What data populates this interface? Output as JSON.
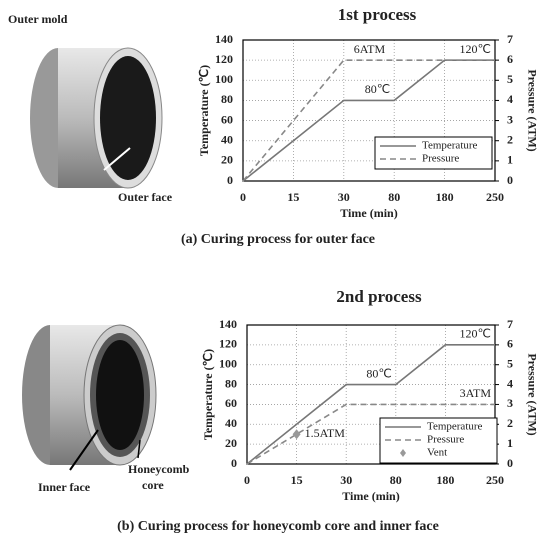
{
  "chart_data": [
    {
      "type": "line",
      "title": "1st process",
      "caption": "(a)  Curing  process  for  outer  face",
      "x_label": "Time (min)",
      "y_label": "Temperature (℃)",
      "y2_label": "Pressure (ATM)",
      "categories": [
        "0",
        "15",
        "30",
        "80",
        "180",
        "250"
      ],
      "ylim": [
        0,
        140
      ],
      "yticks": [
        0,
        20,
        40,
        60,
        80,
        100,
        120,
        140
      ],
      "y2lim": [
        0,
        7
      ],
      "y2ticks": [
        0,
        1,
        2,
        3,
        4,
        5,
        6,
        7
      ],
      "grid": true,
      "series": [
        {
          "name": "Temperature",
          "color": "#777777",
          "style": "solid",
          "values": [
            0,
            40,
            80,
            80,
            120,
            120
          ],
          "value_labels": [
            null,
            null,
            null,
            "80℃",
            null,
            "120℃"
          ]
        },
        {
          "name": "Pressure",
          "color": "#888888",
          "style": "dashed",
          "axis": "y2",
          "values": [
            0,
            3,
            6,
            6,
            6,
            6
          ],
          "value_labels": [
            null,
            null,
            "6ATM",
            null,
            null,
            null
          ]
        }
      ]
    },
    {
      "type": "line",
      "title": "2nd process",
      "caption": "(b)  Curing  process  for  honeycomb  core  and  inner  face",
      "x_label": "Time (min)",
      "y_label": "Temperature (℃)",
      "y2_label": "Pressure (ATM)",
      "categories": [
        "0",
        "15",
        "30",
        "80",
        "180",
        "250"
      ],
      "ylim": [
        0,
        140
      ],
      "yticks": [
        0,
        20,
        40,
        60,
        80,
        100,
        120,
        140
      ],
      "y2lim": [
        0,
        7
      ],
      "y2ticks": [
        0,
        1,
        2,
        3,
        4,
        5,
        6,
        7
      ],
      "grid": true,
      "series": [
        {
          "name": "Temperature",
          "color": "#777777",
          "style": "solid",
          "values": [
            0,
            40,
            80,
            80,
            120,
            120
          ],
          "value_labels": [
            null,
            null,
            null,
            "80℃",
            null,
            "120℃"
          ]
        },
        {
          "name": "Pressure",
          "color": "#888888",
          "style": "dashed",
          "axis": "y2",
          "values": [
            0,
            1.5,
            3,
            3,
            3,
            3
          ],
          "value_labels": [
            null,
            null,
            null,
            null,
            null,
            "3ATM"
          ]
        },
        {
          "name": "Vent",
          "color": "#999999",
          "style": "marker",
          "axis": "y2",
          "values": [
            null,
            1.5,
            null,
            null,
            null,
            null
          ],
          "value_labels": [
            null,
            "1.5ATM",
            null,
            null,
            null,
            null
          ]
        }
      ]
    }
  ],
  "figure": {
    "outer_mold": "Outer mold",
    "outer_face": "Outer face",
    "inner_face": "Inner face",
    "honeycomb": "Honeycomb",
    "core": "core"
  }
}
